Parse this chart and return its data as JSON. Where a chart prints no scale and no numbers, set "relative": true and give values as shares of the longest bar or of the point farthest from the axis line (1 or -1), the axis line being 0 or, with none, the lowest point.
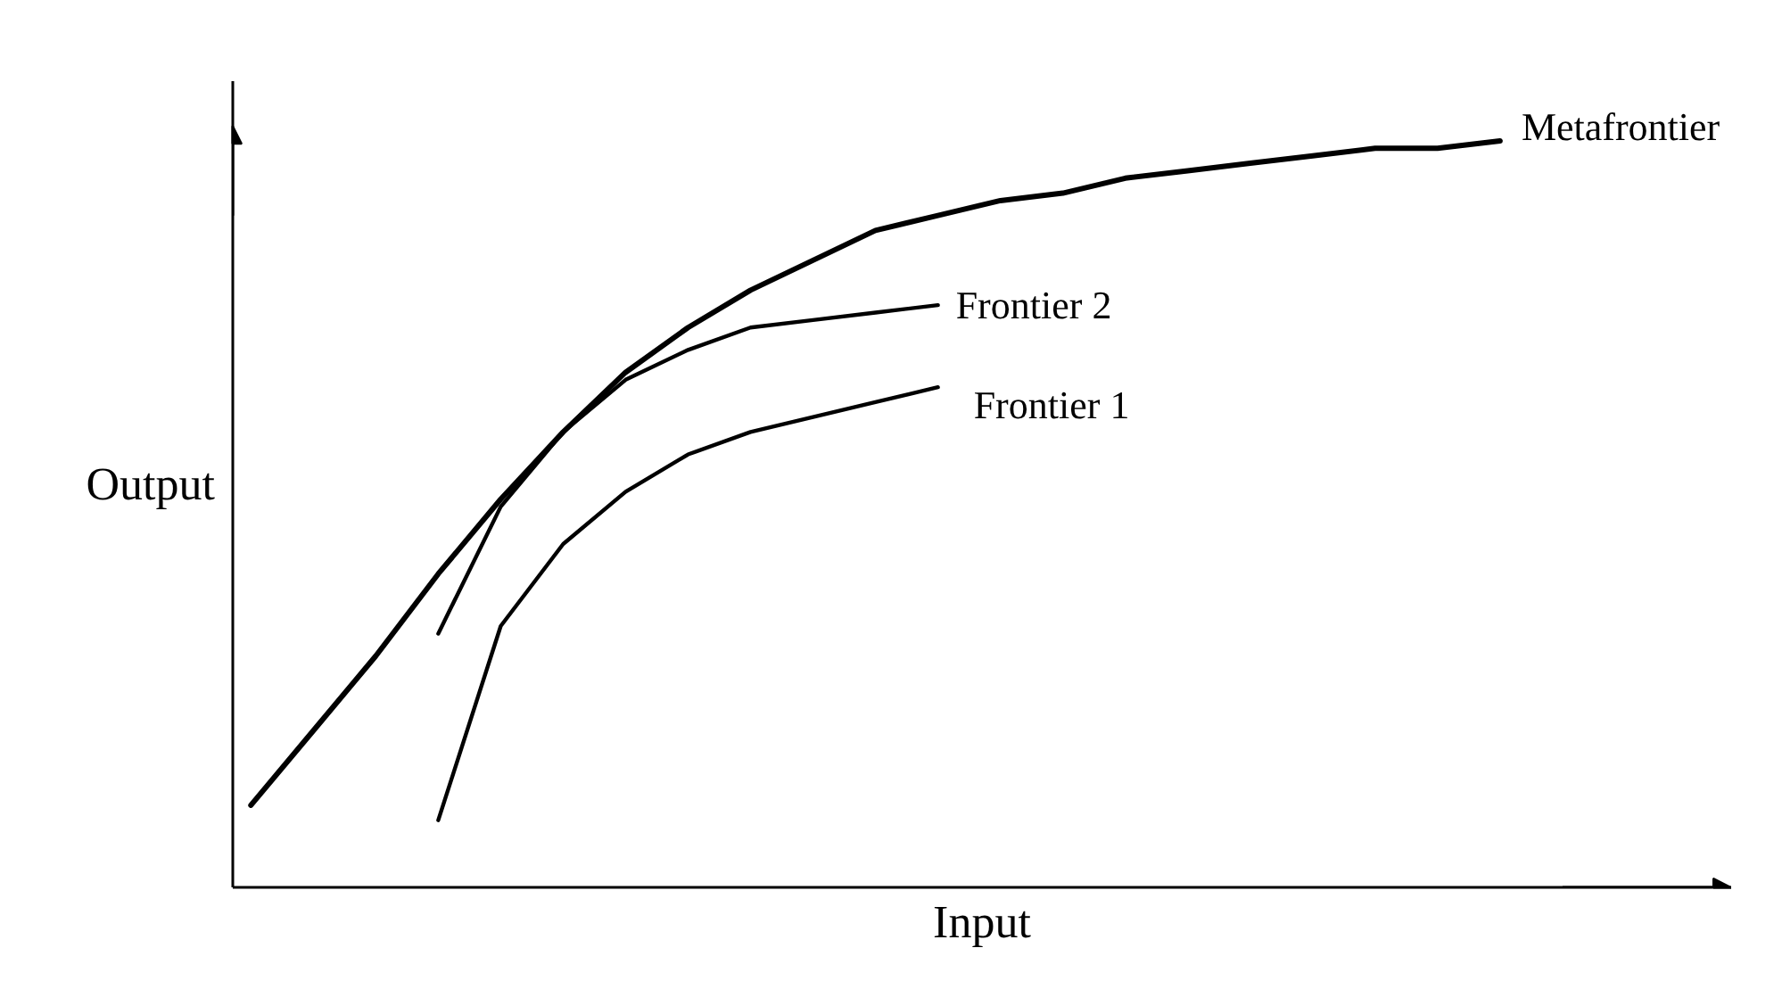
{
  "chart_data": {
    "type": "line",
    "relative": true,
    "xlabel": "Input",
    "ylabel": "Output",
    "marker": "none",
    "line_style": "solid",
    "categories": [
      null,
      null,
      null,
      null,
      null,
      null,
      null,
      null,
      null,
      null,
      null,
      null,
      null,
      null,
      null,
      null,
      null,
      null,
      null,
      null,
      null
    ],
    "series": [
      {
        "name": "Metafrontier",
        "color": "#000000",
        "values": [
          0.11,
          0.21,
          0.31,
          0.42,
          0.52,
          0.61,
          0.69,
          0.75,
          0.8,
          0.84,
          0.88,
          0.9,
          0.92,
          0.93,
          0.95,
          0.96,
          0.97,
          0.98,
          0.99,
          0.99,
          1.0
        ]
      },
      {
        "name": "Frontier 2",
        "color": "#000000",
        "values": [
          null,
          null,
          null,
          0.34,
          0.51,
          0.61,
          0.68,
          0.72,
          0.75,
          0.76,
          0.77,
          0.78,
          null,
          null,
          null,
          null,
          null,
          null,
          null,
          null,
          null
        ]
      },
      {
        "name": "Frontier 1",
        "color": "#000000",
        "values": [
          null,
          null,
          null,
          0.09,
          0.35,
          0.46,
          0.53,
          0.58,
          0.61,
          0.63,
          0.65,
          0.67,
          null,
          null,
          null,
          null,
          null,
          null,
          null,
          null,
          null
        ]
      }
    ]
  }
}
